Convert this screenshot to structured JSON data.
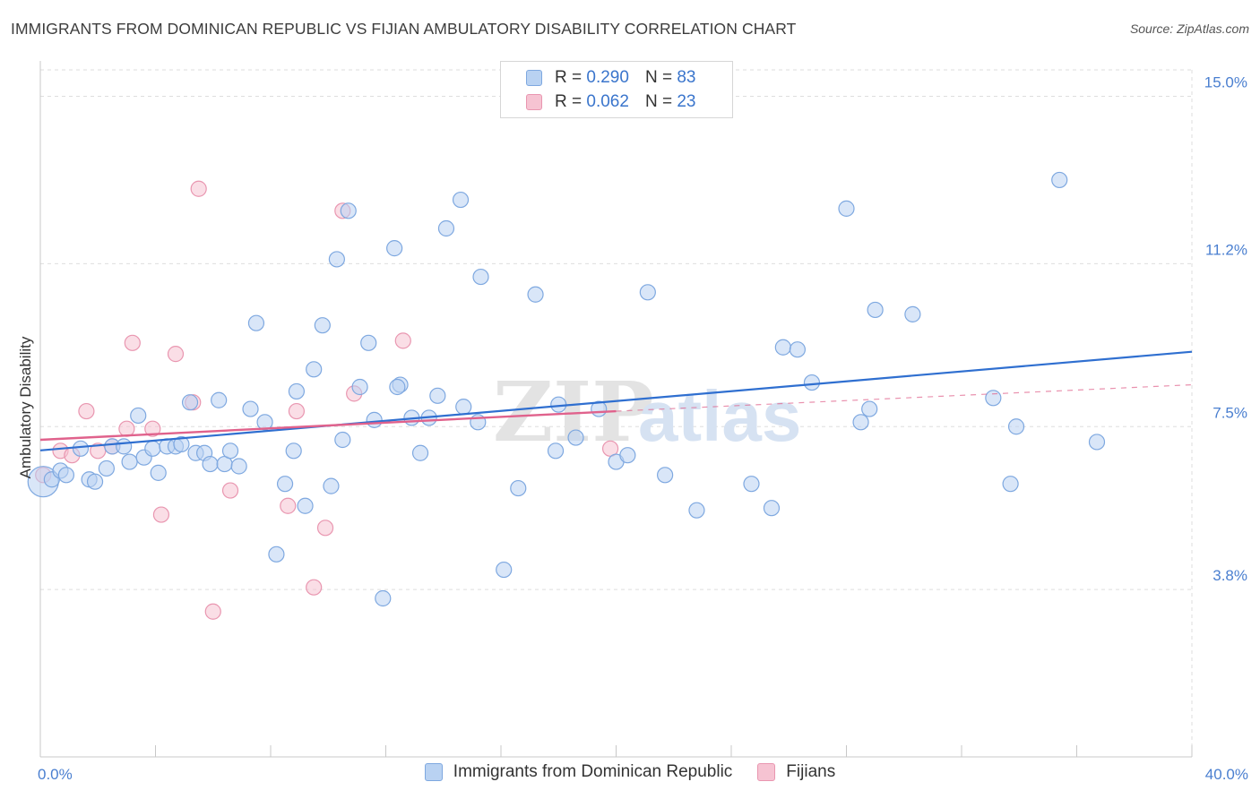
{
  "header": {
    "title": "IMMIGRANTS FROM DOMINICAN REPUBLIC VS FIJIAN AMBULATORY DISABILITY CORRELATION CHART",
    "source": "Source: ZipAtlas.com"
  },
  "legend": {
    "rows": [
      {
        "r_label": "R =",
        "r_value": "0.290",
        "n_label": "N =",
        "n_value": "83"
      },
      {
        "r_label": "R =",
        "r_value": "0.062",
        "n_label": "N =",
        "n_value": "23"
      }
    ]
  },
  "colors": {
    "blue_fill": "#b9d2f2",
    "blue_stroke": "#7ea8e0",
    "blue_line": "#2f6fd0",
    "pink_fill": "#f6c3d2",
    "pink_stroke": "#e996b0",
    "pink_line": "#e0628c",
    "grid": "#dedede",
    "tick_text": "#4a7fd0"
  },
  "chart_data": {
    "type": "scatter",
    "title": "IMMIGRANTS FROM DOMINICAN REPUBLIC VS FIJIAN AMBULATORY DISABILITY CORRELATION CHART",
    "xlabel": "",
    "ylabel": "Ambulatory Disability",
    "xlim": [
      0,
      40
    ],
    "ylim": [
      0,
      15.6
    ],
    "x_tick_labels": [
      "0.0%",
      "40.0%"
    ],
    "y_ticks": [
      3.8,
      7.5,
      11.2,
      15.0
    ],
    "y_tick_labels": [
      "3.8%",
      "7.5%",
      "11.2%",
      "15.0%"
    ],
    "grid": true,
    "legend_placement": "top-center",
    "series": [
      {
        "name": "Immigrants from Dominican Republic",
        "color": "#b9d2f2",
        "trend": {
          "x": [
            0,
            40
          ],
          "y": [
            6.96,
            9.2
          ]
        },
        "points": [
          {
            "x": 0.1,
            "y": 6.25,
            "big": true
          },
          {
            "x": 0.4,
            "y": 6.3
          },
          {
            "x": 0.7,
            "y": 6.5
          },
          {
            "x": 0.9,
            "y": 6.4
          },
          {
            "x": 1.4,
            "y": 7.0
          },
          {
            "x": 1.7,
            "y": 6.3
          },
          {
            "x": 1.9,
            "y": 6.25
          },
          {
            "x": 2.3,
            "y": 6.55
          },
          {
            "x": 2.5,
            "y": 7.05
          },
          {
            "x": 2.9,
            "y": 7.05
          },
          {
            "x": 3.1,
            "y": 6.7
          },
          {
            "x": 3.4,
            "y": 7.75
          },
          {
            "x": 3.6,
            "y": 6.8
          },
          {
            "x": 3.9,
            "y": 7.0
          },
          {
            "x": 4.1,
            "y": 6.45
          },
          {
            "x": 4.4,
            "y": 7.05
          },
          {
            "x": 4.7,
            "y": 7.05
          },
          {
            "x": 4.9,
            "y": 7.1
          },
          {
            "x": 5.2,
            "y": 8.05
          },
          {
            "x": 5.4,
            "y": 6.9
          },
          {
            "x": 5.7,
            "y": 6.9
          },
          {
            "x": 5.9,
            "y": 6.65
          },
          {
            "x": 6.2,
            "y": 8.1
          },
          {
            "x": 6.4,
            "y": 6.65
          },
          {
            "x": 6.6,
            "y": 6.95
          },
          {
            "x": 6.9,
            "y": 6.6
          },
          {
            "x": 7.3,
            "y": 7.9
          },
          {
            "x": 7.5,
            "y": 9.85
          },
          {
            "x": 7.8,
            "y": 7.6
          },
          {
            "x": 8.2,
            "y": 4.6
          },
          {
            "x": 8.5,
            "y": 6.2
          },
          {
            "x": 8.8,
            "y": 6.95
          },
          {
            "x": 8.9,
            "y": 8.3
          },
          {
            "x": 9.2,
            "y": 5.7
          },
          {
            "x": 9.5,
            "y": 8.8
          },
          {
            "x": 9.8,
            "y": 9.8
          },
          {
            "x": 10.1,
            "y": 6.15
          },
          {
            "x": 10.3,
            "y": 11.3
          },
          {
            "x": 10.5,
            "y": 7.2
          },
          {
            "x": 10.7,
            "y": 12.4
          },
          {
            "x": 11.1,
            "y": 8.4
          },
          {
            "x": 11.4,
            "y": 9.4
          },
          {
            "x": 11.6,
            "y": 7.65
          },
          {
            "x": 11.9,
            "y": 3.6
          },
          {
            "x": 12.3,
            "y": 11.55
          },
          {
            "x": 12.5,
            "y": 8.45
          },
          {
            "x": 12.4,
            "y": 8.4
          },
          {
            "x": 12.9,
            "y": 7.7
          },
          {
            "x": 13.2,
            "y": 6.9
          },
          {
            "x": 13.5,
            "y": 7.7
          },
          {
            "x": 13.8,
            "y": 8.2
          },
          {
            "x": 14.1,
            "y": 12.0
          },
          {
            "x": 14.6,
            "y": 12.65
          },
          {
            "x": 14.7,
            "y": 7.95
          },
          {
            "x": 15.2,
            "y": 7.6
          },
          {
            "x": 15.3,
            "y": 10.9
          },
          {
            "x": 16.1,
            "y": 4.25
          },
          {
            "x": 16.6,
            "y": 6.1
          },
          {
            "x": 17.2,
            "y": 10.5
          },
          {
            "x": 17.9,
            "y": 6.95
          },
          {
            "x": 18.0,
            "y": 8.0
          },
          {
            "x": 18.6,
            "y": 7.25
          },
          {
            "x": 19.4,
            "y": 7.9
          },
          {
            "x": 20.0,
            "y": 6.7
          },
          {
            "x": 20.4,
            "y": 6.85
          },
          {
            "x": 21.1,
            "y": 10.55
          },
          {
            "x": 21.7,
            "y": 6.4
          },
          {
            "x": 22.8,
            "y": 5.6
          },
          {
            "x": 24.7,
            "y": 6.2
          },
          {
            "x": 25.4,
            "y": 5.65
          },
          {
            "x": 25.8,
            "y": 9.3
          },
          {
            "x": 26.3,
            "y": 9.25
          },
          {
            "x": 26.8,
            "y": 8.5
          },
          {
            "x": 28.0,
            "y": 12.45
          },
          {
            "x": 28.5,
            "y": 7.6
          },
          {
            "x": 28.8,
            "y": 7.9
          },
          {
            "x": 29.0,
            "y": 10.15
          },
          {
            "x": 30.3,
            "y": 10.05
          },
          {
            "x": 33.1,
            "y": 8.15
          },
          {
            "x": 33.7,
            "y": 6.2
          },
          {
            "x": 33.9,
            "y": 7.5
          },
          {
            "x": 35.4,
            "y": 13.1
          },
          {
            "x": 36.7,
            "y": 7.15
          }
        ]
      },
      {
        "name": "Fijians",
        "color": "#f6c3d2",
        "trend": {
          "x": [
            0,
            20
          ],
          "y": [
            7.2,
            7.85
          ]
        },
        "trend_extension": {
          "x": [
            20,
            40
          ],
          "y": [
            7.85,
            8.45
          ]
        },
        "points": [
          {
            "x": 0.1,
            "y": 6.4
          },
          {
            "x": 0.7,
            "y": 6.95
          },
          {
            "x": 1.1,
            "y": 6.85
          },
          {
            "x": 1.6,
            "y": 7.85
          },
          {
            "x": 2.0,
            "y": 6.95
          },
          {
            "x": 2.5,
            "y": 7.05
          },
          {
            "x": 3.0,
            "y": 7.45
          },
          {
            "x": 3.2,
            "y": 9.4
          },
          {
            "x": 3.9,
            "y": 7.45
          },
          {
            "x": 4.2,
            "y": 5.5
          },
          {
            "x": 4.7,
            "y": 9.15
          },
          {
            "x": 5.3,
            "y": 8.05
          },
          {
            "x": 5.5,
            "y": 12.9
          },
          {
            "x": 6.0,
            "y": 3.3
          },
          {
            "x": 6.6,
            "y": 6.05
          },
          {
            "x": 8.6,
            "y": 5.7
          },
          {
            "x": 8.9,
            "y": 7.85
          },
          {
            "x": 9.5,
            "y": 3.85
          },
          {
            "x": 9.9,
            "y": 5.2
          },
          {
            "x": 10.5,
            "y": 12.4
          },
          {
            "x": 10.9,
            "y": 8.25
          },
          {
            "x": 12.6,
            "y": 9.45
          },
          {
            "x": 19.8,
            "y": 7.0
          }
        ]
      }
    ]
  }
}
